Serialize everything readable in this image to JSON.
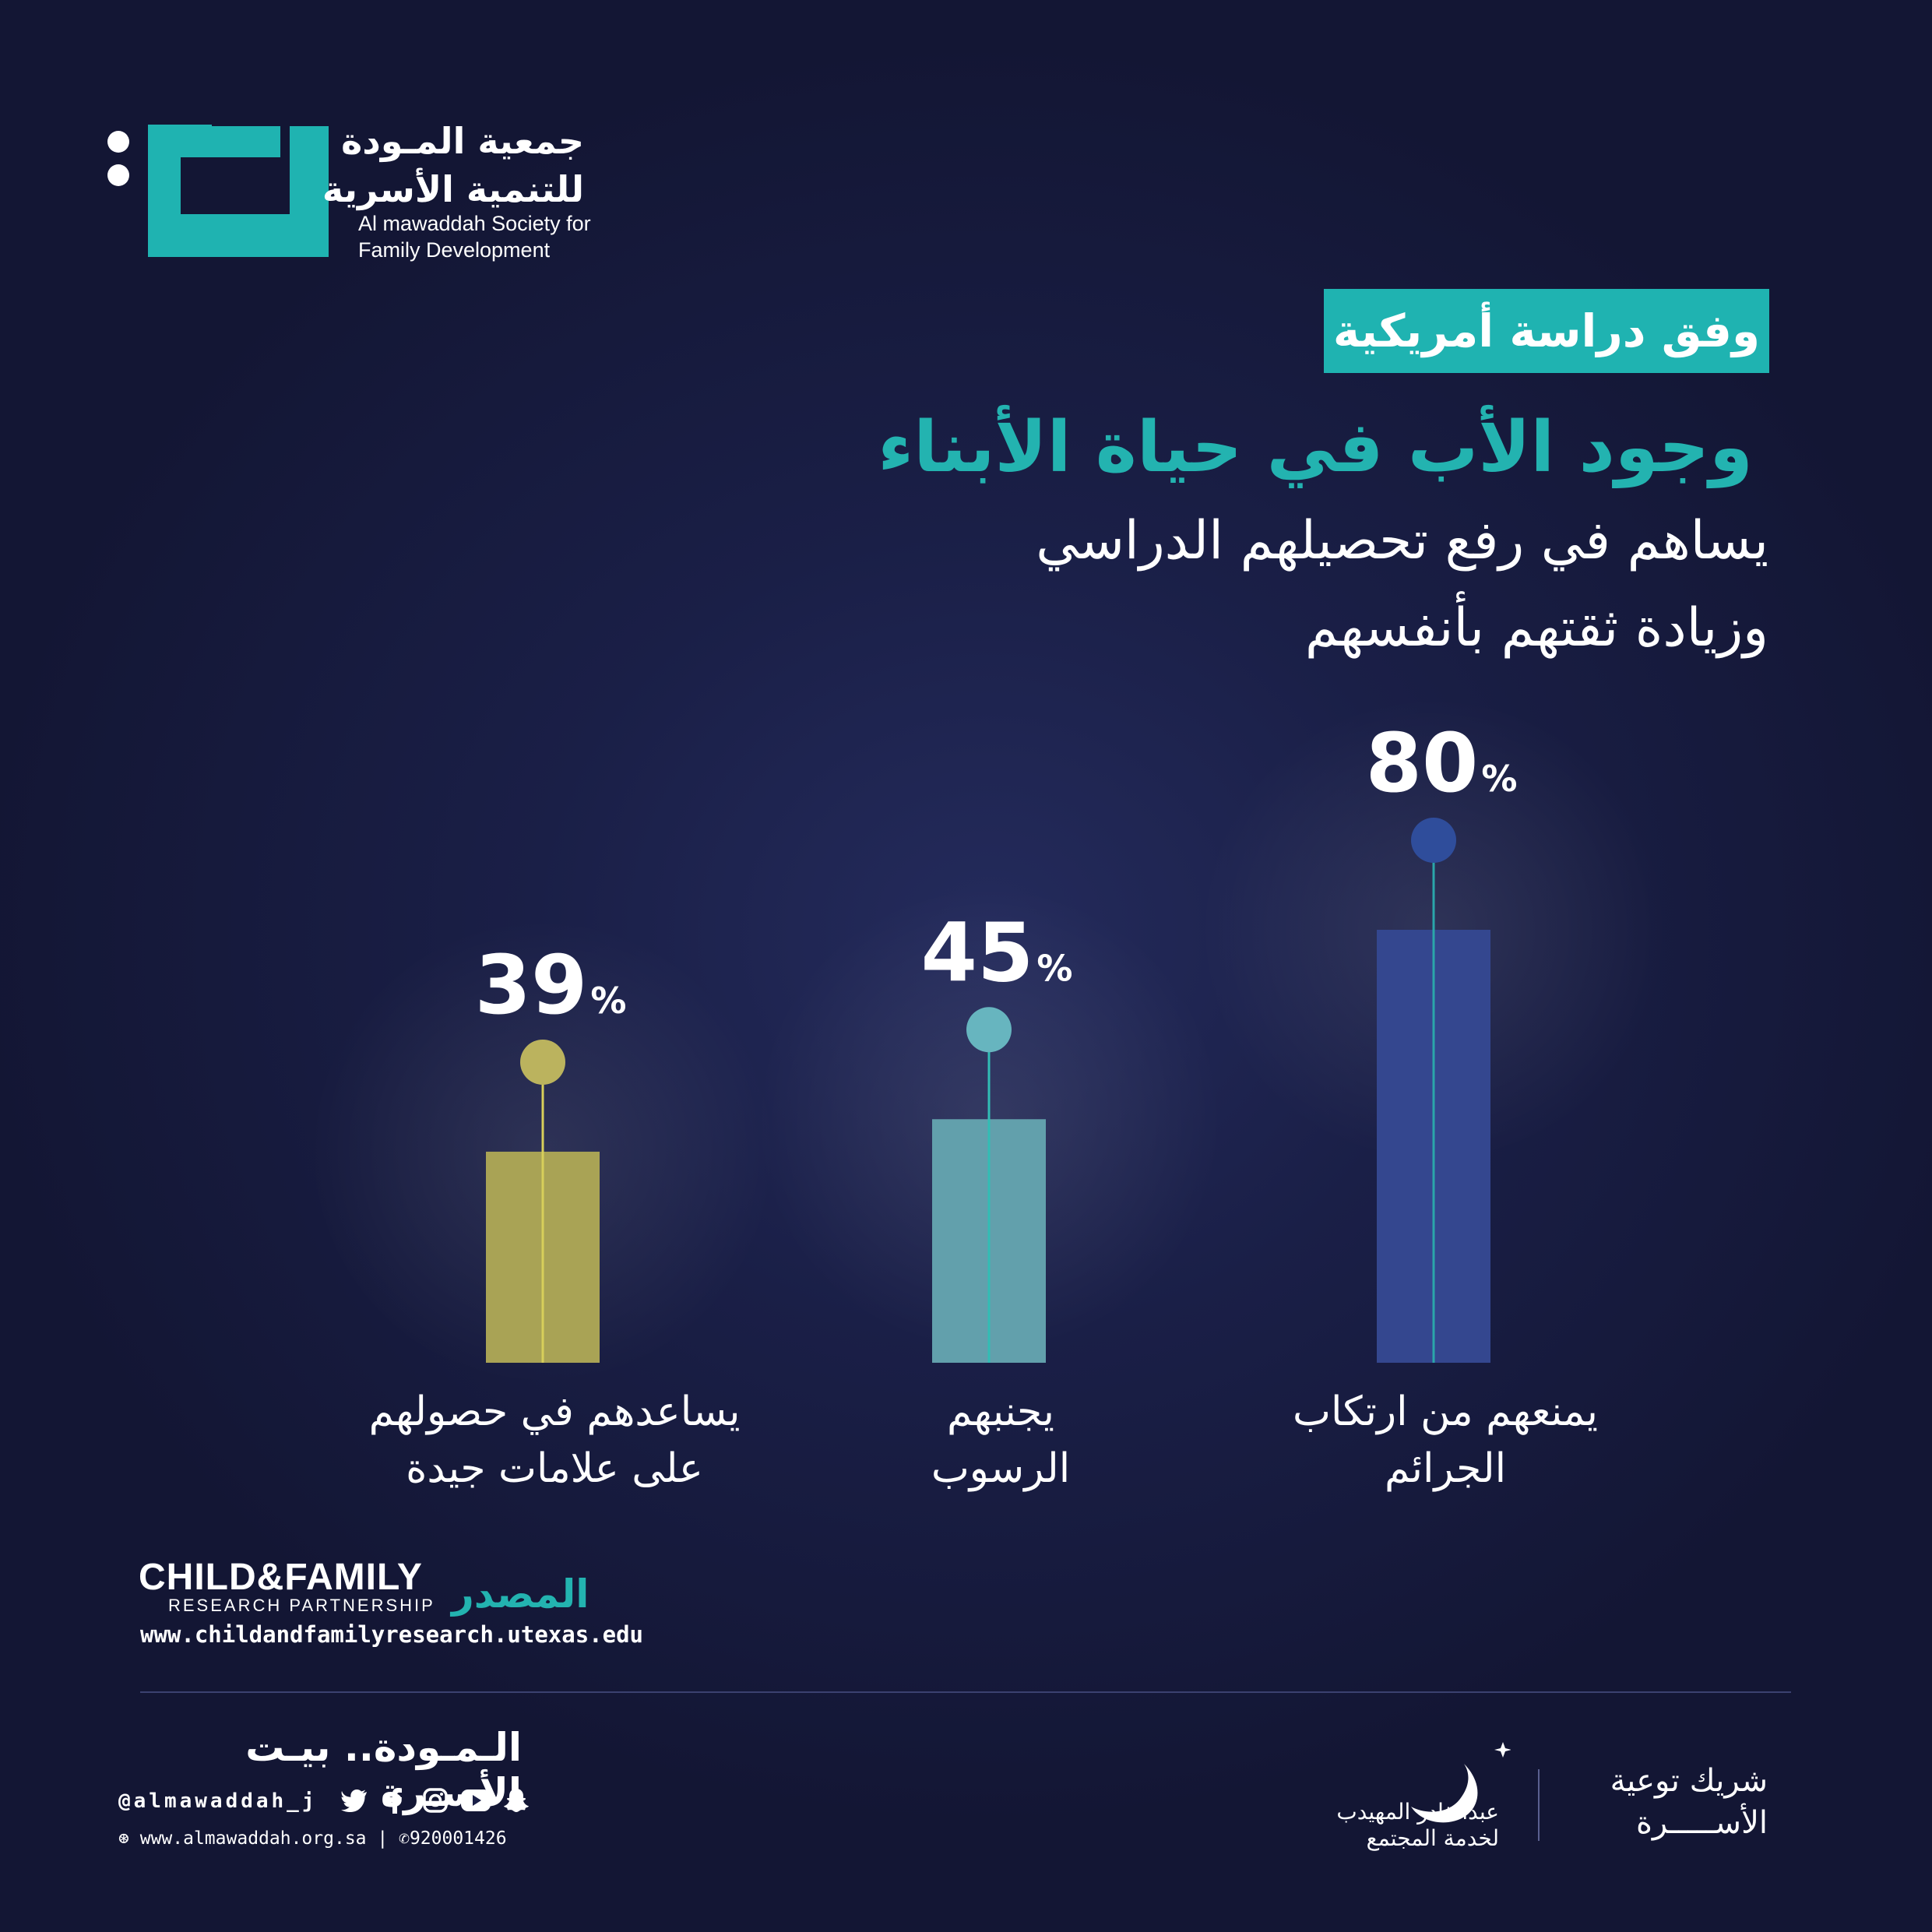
{
  "header": {
    "logo_name_ar_line1": "جمعية المـودة",
    "logo_name_ar_line2": "للتنمية الأسرية",
    "logo_name_en_line1": "Al mawaddah Society for",
    "logo_name_en_line2": "Family Development",
    "tag": "وفق دراسة أمريكية",
    "title": "وجود الأب في حياة الأبناء",
    "subtitle_line1": "يساهم في رفع تحصيلهم الدراسي",
    "subtitle_line2": "وزيادة ثقتهم بأنفسهم"
  },
  "chart_data": {
    "type": "bar",
    "unit": "%",
    "categories": [
      [
        "يساعدهم في حصولهم",
        "على علامات جيدة"
      ],
      [
        "يجنبهم",
        "الرسوب"
      ],
      [
        "يمنعهم من ارتكاب",
        "الجرائم"
      ]
    ],
    "values": [
      39,
      45,
      80
    ],
    "colors": [
      "#a9a355",
      "#62a0ac",
      "#34478f"
    ],
    "marker_colors": [
      "#bbb35e",
      "#67b5bf",
      "#2f4d9b"
    ],
    "stem_colors": [
      "#d8cf5a",
      "#31bdb5",
      "#2aa6aa"
    ]
  },
  "source": {
    "label": "المصدر",
    "org_name_main": "CHILD&FAMILY",
    "org_name_sub": "RESEARCH PARTNERSHIP",
    "url": "www.childandfamilyresearch.utexas.edu"
  },
  "footer": {
    "slogan": "الـمـودة.. بيـت الأسـرة",
    "handle": "@almawaddah_j",
    "website": "www.almawaddah.org.sa",
    "phone": "920001426",
    "social_icons": [
      "twitter-icon",
      "facebook-icon",
      "instagram-icon",
      "youtube-icon",
      "snapchat-icon"
    ],
    "sponsor_name_line1": "عبدالقادر المهيدب",
    "sponsor_name_line2": "لخدمة المجتمع",
    "partner_line1": "شريك توعية",
    "partner_line2": "الأســـــرة"
  },
  "colors": {
    "accent": "#1fb3b1",
    "background": "#1a1f47"
  }
}
